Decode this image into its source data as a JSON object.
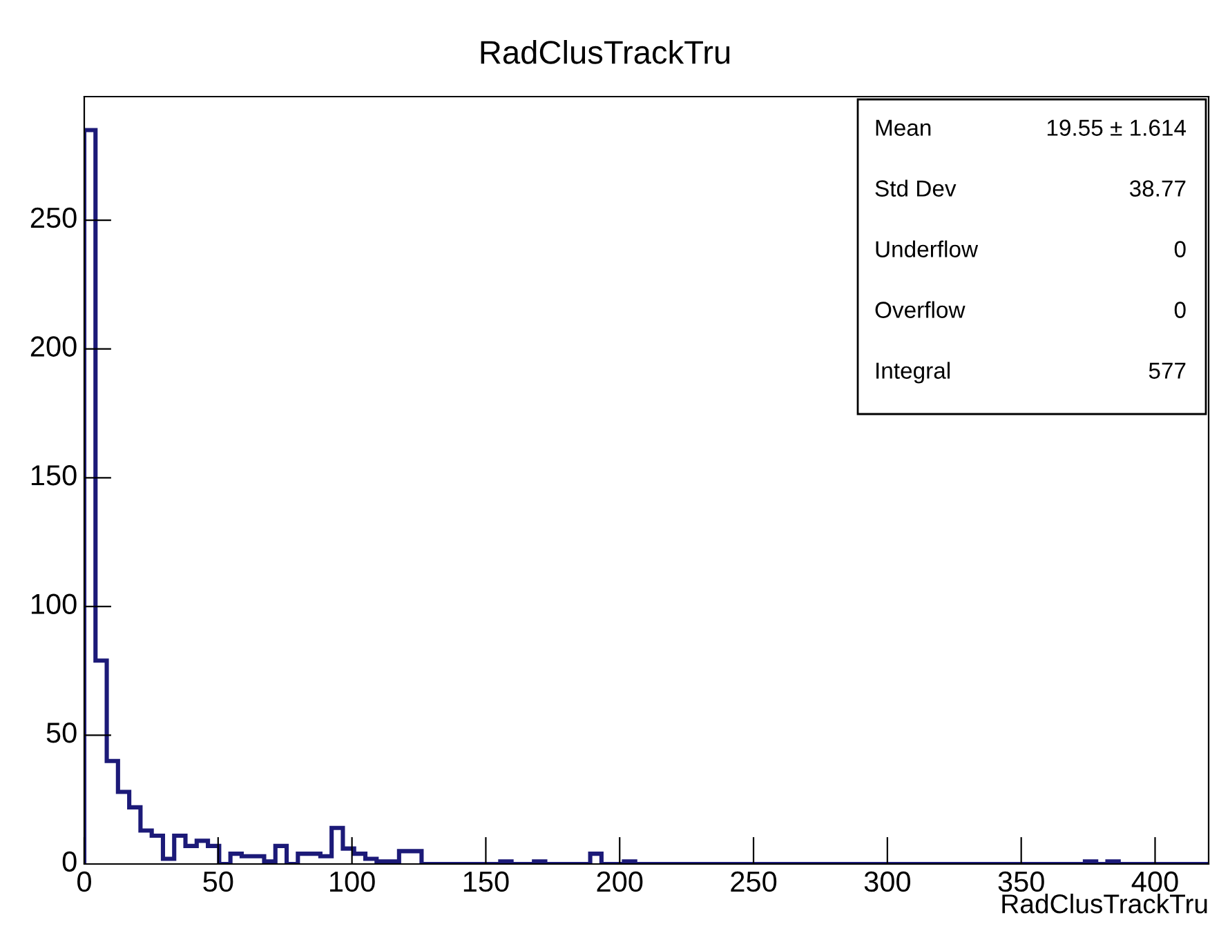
{
  "chart_data": {
    "type": "histogram",
    "title": "RadClusTrackTru",
    "xlabel": "RadClusTrackTru",
    "bins": [
      0,
      4.2,
      8.4,
      12.6,
      16.8,
      21,
      25.2,
      29.4,
      33.6,
      37.8,
      42,
      46.2,
      50.4,
      54.6,
      58.8,
      63,
      67.2,
      71.4,
      75.6,
      79.8,
      84,
      88.2,
      92.4,
      96.6,
      100.8,
      105,
      109.2,
      113.4,
      117.6,
      121.8,
      126,
      130.2,
      134.4,
      138.6,
      142.8,
      147,
      151.2,
      155.4,
      159.6,
      163.8,
      168,
      172.2,
      176.4,
      180.6,
      184.8,
      189,
      193.2,
      197.4,
      201.6,
      205.8,
      210,
      214.2,
      218.4,
      222.6,
      226.8,
      231,
      235.2,
      239.4,
      243.6,
      247.8,
      252,
      256.2,
      260.4,
      264.6,
      268.8,
      273,
      277.2,
      281.4,
      285.6,
      289.8,
      294,
      298.2,
      302.4,
      306.6,
      310.8,
      315,
      319.2,
      323.4,
      327.6,
      331.8,
      336,
      340.2,
      344.4,
      348.6,
      352.8,
      357,
      361.2,
      365.4,
      369.6,
      373.8,
      378,
      382.2,
      386.4,
      390.6,
      394.8,
      399,
      403.2,
      407.4,
      411.6,
      415.8,
      420
    ],
    "values": [
      285,
      79,
      40,
      28,
      22,
      13,
      11,
      2,
      11,
      7,
      9,
      7,
      0,
      4,
      3,
      3,
      1,
      7,
      0,
      4,
      4,
      3,
      14,
      6,
      4,
      2,
      1,
      1,
      5,
      5,
      0,
      0,
      0,
      0,
      0,
      0,
      0,
      1,
      0,
      0,
      1,
      0,
      0,
      0,
      0,
      4,
      0,
      0,
      1,
      0,
      0,
      0,
      0,
      0,
      0,
      0,
      0,
      0,
      0,
      0,
      0,
      0,
      0,
      0,
      0,
      0,
      0,
      0,
      0,
      0,
      0,
      0,
      0,
      0,
      0,
      0,
      0,
      0,
      0,
      0,
      0,
      0,
      0,
      0,
      0,
      0,
      0,
      0,
      0,
      1,
      0,
      1,
      0,
      0,
      0,
      0,
      0,
      0,
      0,
      0
    ],
    "color": "#1c1a78",
    "xlim": [
      0,
      420
    ],
    "ylim": [
      0,
      298
    ],
    "xticks": [
      0,
      50,
      100,
      150,
      200,
      250,
      300,
      350,
      400
    ],
    "yticks": [
      0,
      50,
      100,
      150,
      200,
      250
    ],
    "grid": false,
    "legend": false,
    "annotations": [
      "Mean",
      "19.55 ± 1.614",
      "Std Dev",
      "38.77",
      "Underflow",
      "0",
      "Overflow",
      "0",
      "Integral",
      "577"
    ]
  }
}
